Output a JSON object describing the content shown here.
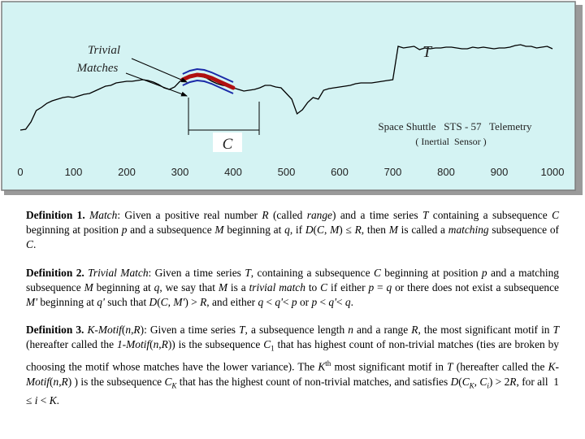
{
  "figure": {
    "series_label": "T",
    "subseq_label": "C",
    "trivial_label_1": "Trivial",
    "trivial_label_2": "Matches",
    "caption_1": "Space Shuttle   STS - 57   Telemetry",
    "caption_2": "( Inertial  Sensor )",
    "colors": {
      "background": "#d4f3f3",
      "series": "#000000",
      "motif": "#b01010",
      "range": "#1a2aa8",
      "frame": "#7d7d7d"
    }
  },
  "chart_data": {
    "type": "line",
    "x_ticks": [
      "0",
      "100",
      "200",
      "300",
      "400",
      "500",
      "600",
      "700",
      "800",
      "900",
      "1000"
    ],
    "xlim": [
      0,
      1000
    ],
    "x": [
      0,
      10,
      20,
      30,
      40,
      50,
      60,
      70,
      80,
      90,
      100,
      110,
      120,
      130,
      140,
      150,
      160,
      170,
      180,
      190,
      200,
      210,
      220,
      230,
      240,
      250,
      260,
      270,
      280,
      290,
      300,
      310,
      320,
      330,
      340,
      350,
      360,
      370,
      380,
      390,
      400,
      410,
      420,
      430,
      440,
      450,
      460,
      470,
      480,
      490,
      500,
      510,
      520,
      530,
      540,
      550,
      560,
      570,
      580,
      590,
      600,
      610,
      620,
      630,
      640,
      650,
      660,
      670,
      680,
      690,
      700,
      710,
      720,
      730,
      740,
      750,
      760,
      770,
      780,
      790,
      800,
      810,
      820,
      830,
      840,
      850,
      860,
      870,
      880,
      890,
      900,
      910,
      920,
      930,
      940,
      950,
      960,
      970,
      980,
      990,
      1000
    ],
    "y": [
      40,
      41,
      50,
      64,
      68,
      73,
      76,
      78,
      80,
      81,
      80,
      82,
      84,
      85,
      88,
      91,
      94,
      95,
      98,
      99,
      100,
      100,
      101,
      102,
      101,
      99,
      96,
      92,
      90,
      93,
      100,
      104,
      107,
      108,
      106,
      104,
      100,
      97,
      95,
      94,
      92,
      90,
      88,
      89,
      90,
      92,
      95,
      95,
      93,
      92,
      85,
      78,
      60,
      65,
      74,
      80,
      78,
      89,
      91,
      92,
      93,
      94,
      95,
      97,
      98,
      98,
      98,
      99,
      100,
      101,
      102,
      143,
      141,
      142,
      143,
      139,
      141,
      140,
      141,
      141,
      142,
      142,
      141,
      140,
      140,
      142,
      141,
      142,
      141,
      140,
      141,
      141,
      142,
      144,
      145,
      143,
      143,
      141,
      142,
      143,
      140
    ],
    "motif_x": [
      305,
      400
    ],
    "motif_y": [
      102,
      106,
      108,
      107,
      104,
      100,
      96,
      92
    ],
    "range_offset": 7
  }
}
